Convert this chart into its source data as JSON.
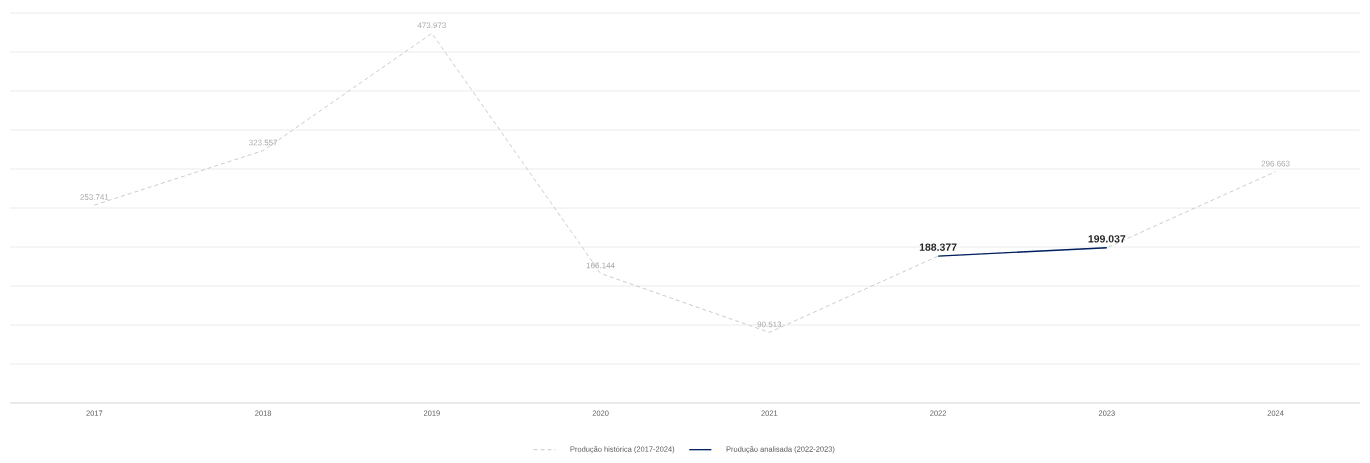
{
  "chart_data": {
    "type": "line",
    "categories": [
      "2017",
      "2018",
      "2019",
      "2020",
      "2021",
      "2022",
      "2023",
      "2024"
    ],
    "series": [
      {
        "name": "Produção histórica (2017-2024)",
        "color": "#bfbfbf",
        "line_style": "dashed",
        "values": [
          253.741,
          323.557,
          473.973,
          166.144,
          90.513,
          188.377,
          199.037,
          296.663
        ],
        "value_labels": [
          "253.741",
          "323.557",
          "473.973",
          "166.144",
          "90.513",
          null,
          null,
          "296.663"
        ]
      },
      {
        "name": "Produção analisada (2022-2023)",
        "color": "#002060",
        "line_style": "solid",
        "values": [
          null,
          null,
          null,
          null,
          null,
          188.377,
          199.037,
          null
        ],
        "value_labels": [
          null,
          null,
          null,
          null,
          null,
          "188.377",
          "199.037",
          null
        ]
      }
    ],
    "ylim": [
      0,
      500
    ],
    "tick_labels": "x",
    "grid": "y",
    "legend": "bottom",
    "marker": "none"
  }
}
